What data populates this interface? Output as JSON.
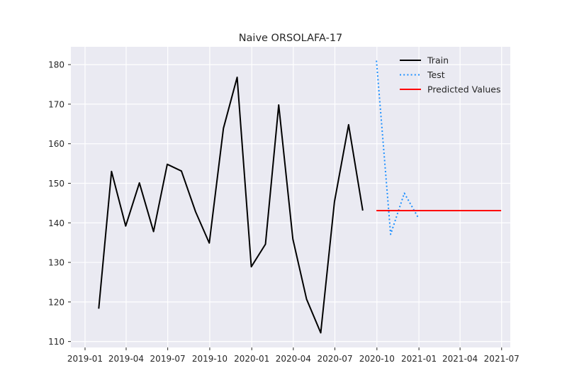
{
  "chart_data": {
    "type": "line",
    "title": "Naive ORSOLAFA-17",
    "xlabel": "",
    "ylabel": "",
    "x_axis": "date",
    "xlim": [
      "2018-12-01",
      "2021-07-20"
    ],
    "ylim": [
      108.5,
      184.5
    ],
    "x_ticks": [
      "2019-01",
      "2019-04",
      "2019-07",
      "2019-10",
      "2020-01",
      "2020-04",
      "2020-07",
      "2020-10",
      "2021-01",
      "2021-04",
      "2021-07"
    ],
    "y_ticks": [
      110,
      120,
      130,
      140,
      150,
      160,
      170,
      180
    ],
    "grid": true,
    "legend_position": "top-right",
    "series": [
      {
        "name": "Train",
        "style": "solid",
        "color": "#000000",
        "x": [
          "2019-01-31",
          "2019-02-28",
          "2019-03-31",
          "2019-04-30",
          "2019-05-31",
          "2019-06-30",
          "2019-07-31",
          "2019-08-31",
          "2019-09-30",
          "2019-10-31",
          "2019-11-30",
          "2019-12-31",
          "2020-01-31",
          "2020-02-29",
          "2020-03-31",
          "2020-04-30",
          "2020-05-31",
          "2020-06-30",
          "2020-07-31",
          "2020-08-31"
        ],
        "values": [
          118.3,
          153.0,
          139.2,
          150.1,
          137.8,
          154.8,
          153.1,
          142.8,
          134.9,
          163.9,
          176.8,
          128.9,
          134.6,
          169.8,
          135.9,
          120.7,
          112.2,
          145.3,
          164.8,
          143.1
        ]
      },
      {
        "name": "Test",
        "style": "dotted",
        "color": "#1e90ff",
        "x": [
          "2020-09-30",
          "2020-10-31",
          "2020-11-30",
          "2020-12-31"
        ],
        "values": [
          181.0,
          137.1,
          147.5,
          141.2
        ]
      },
      {
        "name": "Predicted Values",
        "style": "solid",
        "color": "#ff0000",
        "x": [
          "2020-09-30",
          "2021-06-30"
        ],
        "values": [
          143.1,
          143.1
        ]
      }
    ]
  }
}
